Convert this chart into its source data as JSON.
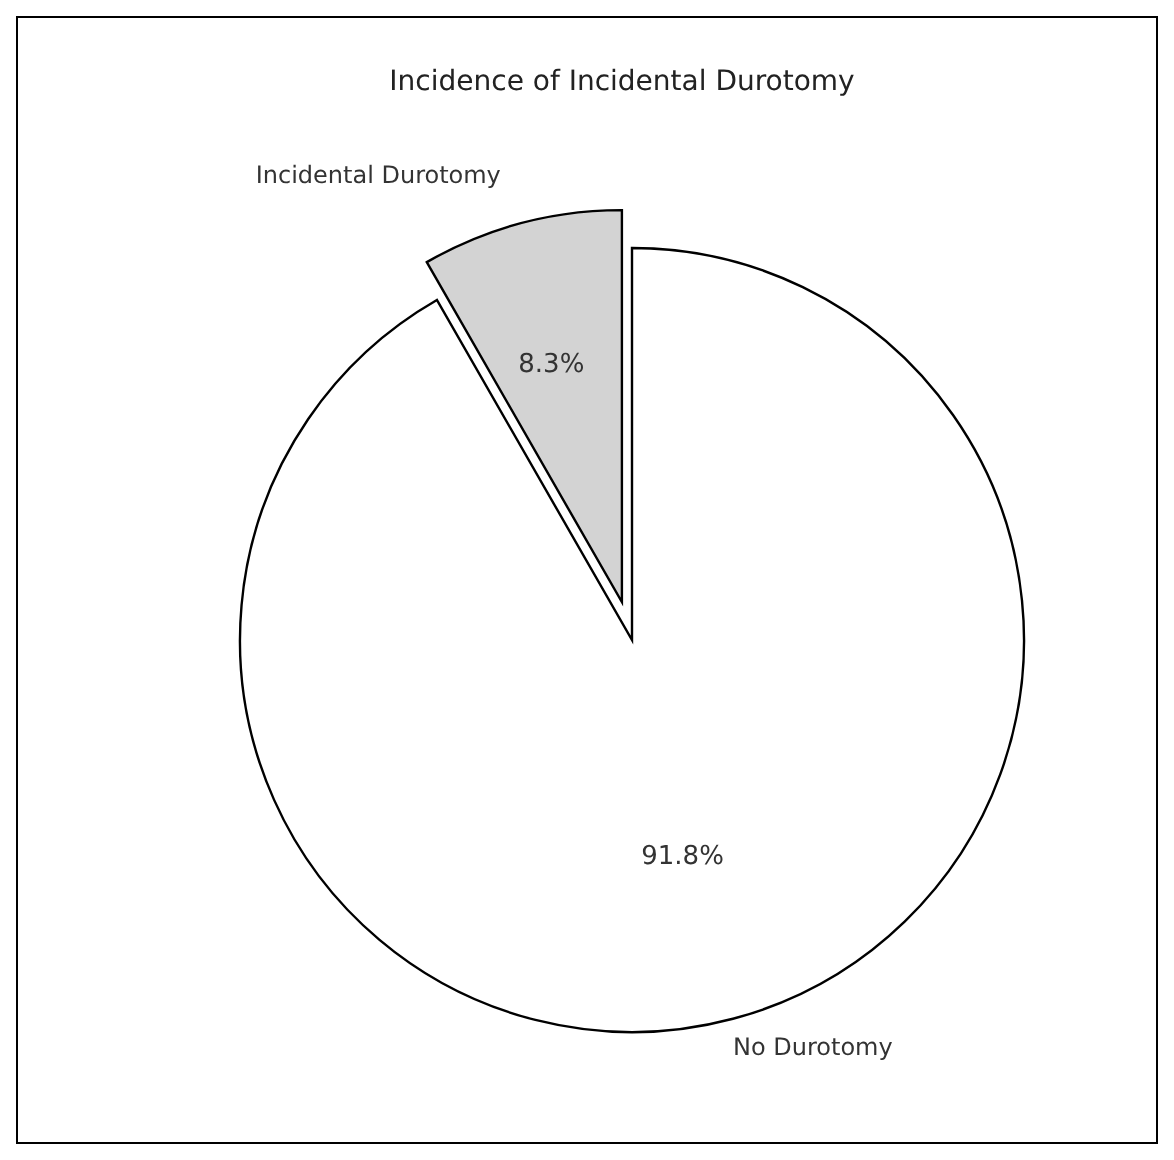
{
  "chart_data": {
    "type": "pie",
    "title": "Incidence of Incidental Durotomy",
    "categories": [
      "Incidental Durotomy",
      "No Durotomy"
    ],
    "values": [
      8.3,
      91.8
    ],
    "value_labels": [
      "8.3%",
      "91.8%"
    ],
    "colors": [
      "#d3d3d3",
      "#ffffff"
    ]
  }
}
